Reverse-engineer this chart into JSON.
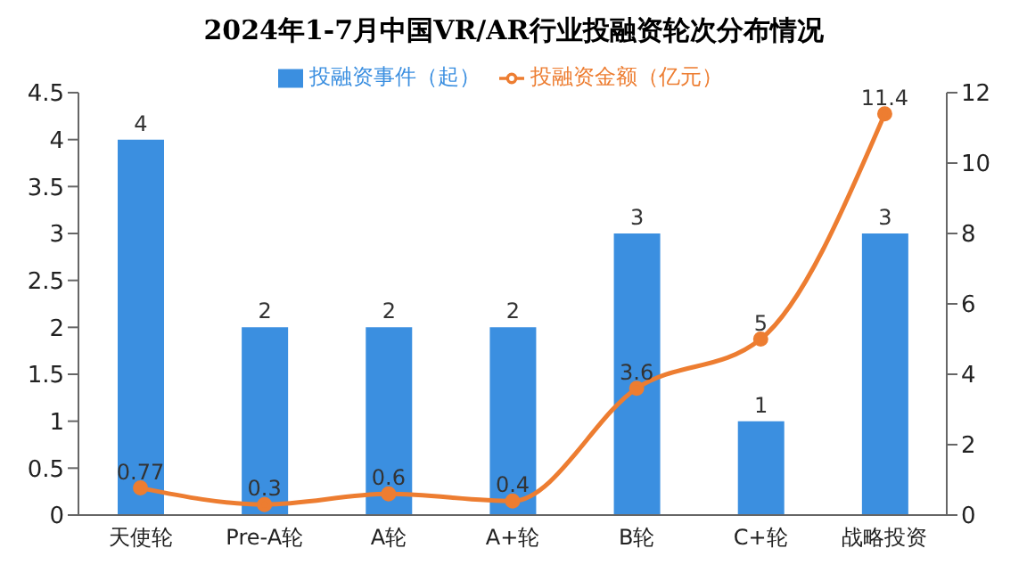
{
  "chart_data": {
    "type": "bar",
    "title": "2024年1-7月中国VR/AR行业投融资轮次分布情况",
    "categories": [
      "天使轮",
      "Pre-A轮",
      "A轮",
      "A+轮",
      "B轮",
      "C+轮",
      "战略投资"
    ],
    "series": [
      {
        "name": "投融资事件（起）",
        "color": "#3b8fe0",
        "values": [
          4,
          2,
          2,
          2,
          3,
          1,
          3
        ]
      },
      {
        "name": "投融资金额（亿元）",
        "type": "line",
        "axis": "y2",
        "color": "#ed7d31",
        "values": [
          0.77,
          0.3,
          0.6,
          0.4,
          3.6,
          5,
          11.4
        ]
      }
    ],
    "ylim": [
      0,
      4.5
    ],
    "yticks": [
      0,
      0.5,
      1,
      1.5,
      2,
      2.5,
      3,
      3.5,
      4,
      4.5
    ],
    "y2lim": [
      0,
      12
    ],
    "y2ticks": [
      0,
      2,
      4,
      6,
      8,
      10,
      12
    ],
    "data_labels": true,
    "legend": "top",
    "grid": false,
    "marker": "circle",
    "line_style": "solid"
  }
}
